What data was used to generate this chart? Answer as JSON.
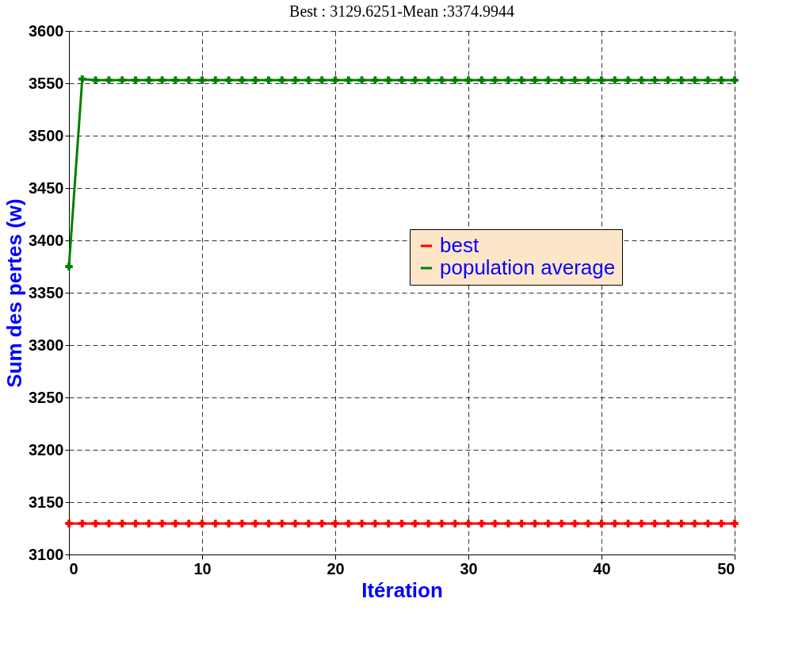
{
  "chart_data": {
    "type": "line",
    "title": "Best : 3129.6251-Mean :3374.9944",
    "xlabel": "Itération",
    "ylabel": "Sum des pertes (w)",
    "x": [
      0,
      1,
      2,
      3,
      4,
      5,
      6,
      7,
      8,
      9,
      10,
      11,
      12,
      13,
      14,
      15,
      16,
      17,
      18,
      19,
      20,
      21,
      22,
      23,
      24,
      25,
      26,
      27,
      28,
      29,
      30,
      31,
      32,
      33,
      34,
      35,
      36,
      37,
      38,
      39,
      40,
      41,
      42,
      43,
      44,
      45,
      46,
      47,
      48,
      49,
      50
    ],
    "series": [
      {
        "name": "best",
        "color": "#ff0000",
        "values": [
          3129.6,
          3129.6,
          3129.6,
          3129.6,
          3129.6,
          3129.6,
          3129.6,
          3129.6,
          3129.6,
          3129.6,
          3129.6,
          3129.6,
          3129.6,
          3129.6,
          3129.6,
          3129.6,
          3129.6,
          3129.6,
          3129.6,
          3129.6,
          3129.6,
          3129.6,
          3129.6,
          3129.6,
          3129.6,
          3129.6,
          3129.6,
          3129.6,
          3129.6,
          3129.6,
          3129.6,
          3129.6,
          3129.6,
          3129.6,
          3129.6,
          3129.6,
          3129.6,
          3129.6,
          3129.6,
          3129.6,
          3129.6,
          3129.6,
          3129.6,
          3129.6,
          3129.6,
          3129.6,
          3129.6,
          3129.6,
          3129.6,
          3129.6,
          3129.6
        ]
      },
      {
        "name": "population average",
        "color": "#008000",
        "values": [
          3375,
          3554,
          3553,
          3553,
          3553,
          3553,
          3553,
          3553,
          3553,
          3553,
          3553,
          3553,
          3553,
          3553,
          3553,
          3553,
          3553,
          3553,
          3553,
          3553,
          3553,
          3553,
          3553,
          3553,
          3553,
          3553,
          3553,
          3553,
          3553,
          3553,
          3553,
          3553,
          3553,
          3553,
          3553,
          3553,
          3553,
          3553,
          3553,
          3553,
          3553,
          3553,
          3553,
          3553,
          3553,
          3553,
          3553,
          3553,
          3553,
          3553,
          3553
        ]
      }
    ],
    "xlim": [
      0,
      50
    ],
    "xticks": [
      0,
      10,
      20,
      30,
      40,
      50
    ],
    "ylim": [
      3100,
      3600
    ],
    "yticks": [
      3100,
      3150,
      3200,
      3250,
      3300,
      3350,
      3400,
      3450,
      3500,
      3550,
      3600
    ],
    "grid": true,
    "legend": "right",
    "marker": "cross",
    "line_style": "solid"
  }
}
